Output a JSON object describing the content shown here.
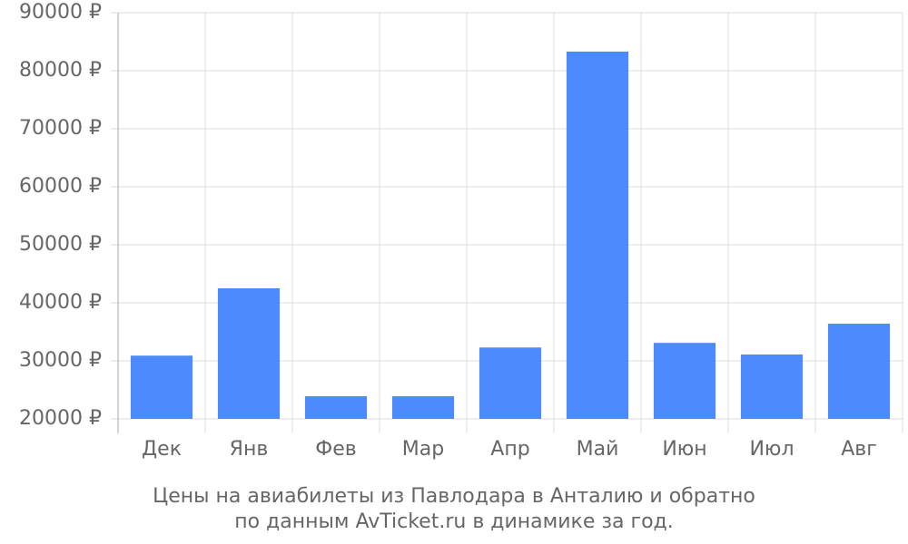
{
  "chart_data": {
    "type": "bar",
    "title": "Цены на авиабилеты из Павлодара в Анталию и обратно",
    "subtitle": "по данным AvTicket.ru в динамике за год.",
    "categories": [
      "Дек",
      "Янв",
      "Фев",
      "Мар",
      "Апр",
      "Май",
      "Июн",
      "Июл",
      "Авг"
    ],
    "values": [
      30900,
      42500,
      23900,
      23900,
      32300,
      83300,
      33100,
      31100,
      36400
    ],
    "color": "#4d8afd",
    "ylim": [
      20000,
      90000
    ],
    "yticks": [
      {
        "value": 20000,
        "label": "20000 ₽"
      },
      {
        "value": 30000,
        "label": "30000 ₽"
      },
      {
        "value": 40000,
        "label": "40000 ₽"
      },
      {
        "value": 50000,
        "label": "50000 ₽"
      },
      {
        "value": 60000,
        "label": "60000 ₽"
      },
      {
        "value": 70000,
        "label": "70000 ₽"
      },
      {
        "value": 80000,
        "label": "80000 ₽"
      },
      {
        "value": 90000,
        "label": "90000 ₽"
      }
    ],
    "grid": true
  }
}
